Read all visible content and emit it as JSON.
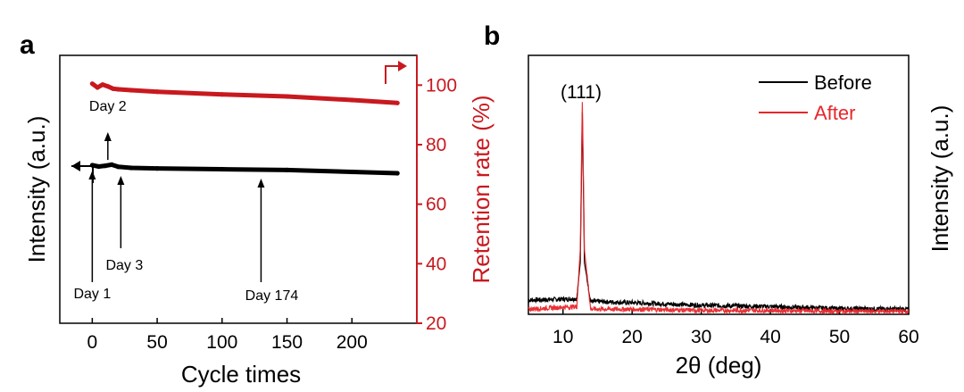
{
  "colors": {
    "before": "#000000",
    "after": "#e8262a",
    "retention_axis": "#c8191f"
  },
  "chart_data": [
    {
      "panel_label": "a",
      "type": "line",
      "xlabel": "Cycle times",
      "ylabel_left": "Intensity (a.u.)",
      "ylabel_right": "Retention rate (%)",
      "xlim": [
        -25,
        250
      ],
      "x_ticks": [
        "0",
        "50",
        "100",
        "150",
        "200"
      ],
      "right_ylim": [
        20,
        110
      ],
      "right_ticks": [
        "20",
        "40",
        "60",
        "80",
        "100"
      ],
      "grid": false,
      "series": [
        {
          "name": "Intensity",
          "axis": "left",
          "color": "#000000",
          "x": [
            0,
            5,
            10,
            15,
            20,
            30,
            50,
            100,
            150,
            200,
            235
          ],
          "y": [
            0.59,
            0.585,
            0.588,
            0.592,
            0.584,
            0.58,
            0.578,
            0.575,
            0.572,
            0.565,
            0.56
          ]
        },
        {
          "name": "Retention rate",
          "axis": "right",
          "color": "#c8191f",
          "x": [
            0,
            4,
            8,
            12,
            16,
            20,
            30,
            50,
            100,
            150,
            200,
            235
          ],
          "y": [
            100.5,
            99.2,
            100.2,
            99.6,
            98.8,
            98.6,
            98.3,
            97.8,
            96.9,
            96.2,
            95,
            94
          ]
        }
      ],
      "annotations": [
        {
          "text": "Day 1",
          "x": 0
        },
        {
          "text": "Day 2",
          "x": 12
        },
        {
          "text": "Day 3",
          "x": 22
        },
        {
          "text": "Day 174",
          "x": 130
        }
      ]
    },
    {
      "panel_label": "b",
      "type": "line",
      "xlabel": "2θ (deg)",
      "ylabel": "Intensity (a.u.)",
      "xlim": [
        5,
        60
      ],
      "x_ticks": [
        "10",
        "20",
        "30",
        "40",
        "50",
        "60"
      ],
      "legend": {
        "position": "top-right",
        "entries": [
          "Before",
          "After"
        ]
      },
      "peak_label": "(111)",
      "peak_position": 12.8,
      "grid": false,
      "series": [
        {
          "name": "Before",
          "color": "#000000",
          "x": [
            5,
            12,
            12.5,
            12.8,
            13.1,
            14,
            20,
            30,
            40,
            50,
            60
          ],
          "y": [
            0.055,
            0.06,
            0.2,
            0.78,
            0.2,
            0.05,
            0.045,
            0.035,
            0.03,
            0.022,
            0.02
          ]
        },
        {
          "name": "After",
          "color": "#e8262a",
          "x": [
            5,
            12,
            12.5,
            12.8,
            13.1,
            14,
            20,
            30,
            40,
            50,
            60
          ],
          "y": [
            0.02,
            0.03,
            0.25,
            0.82,
            0.25,
            0.02,
            0.02,
            0.015,
            0.015,
            0.012,
            0.012
          ]
        }
      ]
    }
  ]
}
